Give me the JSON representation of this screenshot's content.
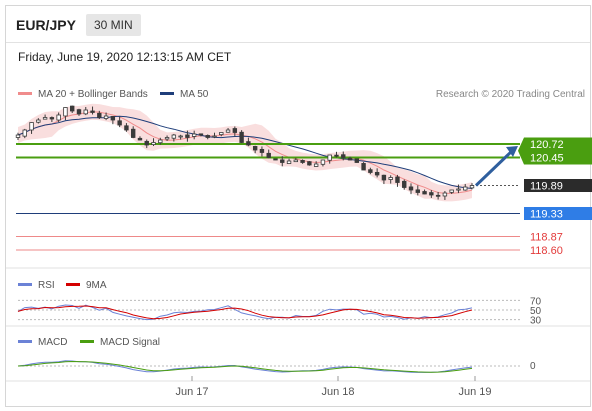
{
  "header": {
    "pair": "EUR/JPY",
    "timeframe": "30 MIN",
    "datetime": "Friday, June 19, 2020 12:13:15 AM CET"
  },
  "legend": {
    "ma20": "MA 20 + Bollinger Bands",
    "ma50": "MA 50",
    "credit": "Research © 2020 Trading Central"
  },
  "colors": {
    "candle": "#3a3a3a",
    "ma20": "#f08c8c",
    "ma50": "#1f3e7a",
    "band": "#f7d0d0",
    "resistance": "#4a9e10",
    "support_blue": "#2f7de6",
    "support_red": "#e33b3b",
    "last_price_bg": "#2b2b2b",
    "arrow": "#2f5f9e",
    "rsi": "#6b82d6",
    "rsi_ma": "#d40000",
    "macd": "#6b82d6",
    "macd_signal": "#4a9e10"
  },
  "chart_data": [
    {
      "type": "candlestick",
      "x_labels": [
        "Jun 17",
        "Jun 18",
        "Jun 19"
      ],
      "ylim": [
        118.3,
        121.4
      ],
      "overlays": [
        "MA 20 + Bollinger Bands",
        "MA 50"
      ],
      "levels": [
        {
          "value": 120.72,
          "label": "120.72",
          "kind": "resistance"
        },
        {
          "value": 120.45,
          "label": "120.45",
          "kind": "resistance"
        },
        {
          "value": 119.89,
          "label": "119.89",
          "kind": "last"
        },
        {
          "value": 119.33,
          "label": "119.33",
          "kind": "pivot"
        },
        {
          "value": 118.87,
          "label": "118.87",
          "kind": "support"
        },
        {
          "value": 118.6,
          "label": "118.60",
          "kind": "support"
        }
      ],
      "close": [
        120.9,
        121.0,
        121.15,
        121.2,
        121.25,
        121.22,
        121.3,
        121.45,
        121.38,
        121.32,
        121.4,
        121.35,
        121.25,
        121.28,
        121.2,
        121.1,
        121.0,
        120.85,
        120.8,
        120.7,
        120.75,
        120.8,
        120.85,
        120.9,
        120.88,
        120.85,
        120.92,
        120.9,
        120.85,
        120.88,
        120.95,
        121.0,
        120.95,
        120.75,
        120.7,
        120.6,
        120.55,
        120.45,
        120.4,
        120.35,
        120.38,
        120.4,
        120.35,
        120.3,
        120.32,
        120.4,
        120.5,
        120.48,
        120.45,
        120.4,
        120.35,
        120.2,
        120.15,
        120.1,
        120.0,
        120.05,
        119.95,
        119.85,
        119.8,
        119.75,
        119.72,
        119.7,
        119.68,
        119.74,
        119.8,
        119.82,
        119.86,
        119.89
      ]
    },
    {
      "type": "line",
      "title": "RSI",
      "series": [
        {
          "name": "RSI"
        },
        {
          "name": "9MA"
        }
      ],
      "levels": [
        70,
        50,
        30
      ]
    },
    {
      "type": "line",
      "title": "MACD",
      "series": [
        {
          "name": "MACD"
        },
        {
          "name": "MACD Signal"
        }
      ],
      "levels": [
        0
      ]
    }
  ]
}
